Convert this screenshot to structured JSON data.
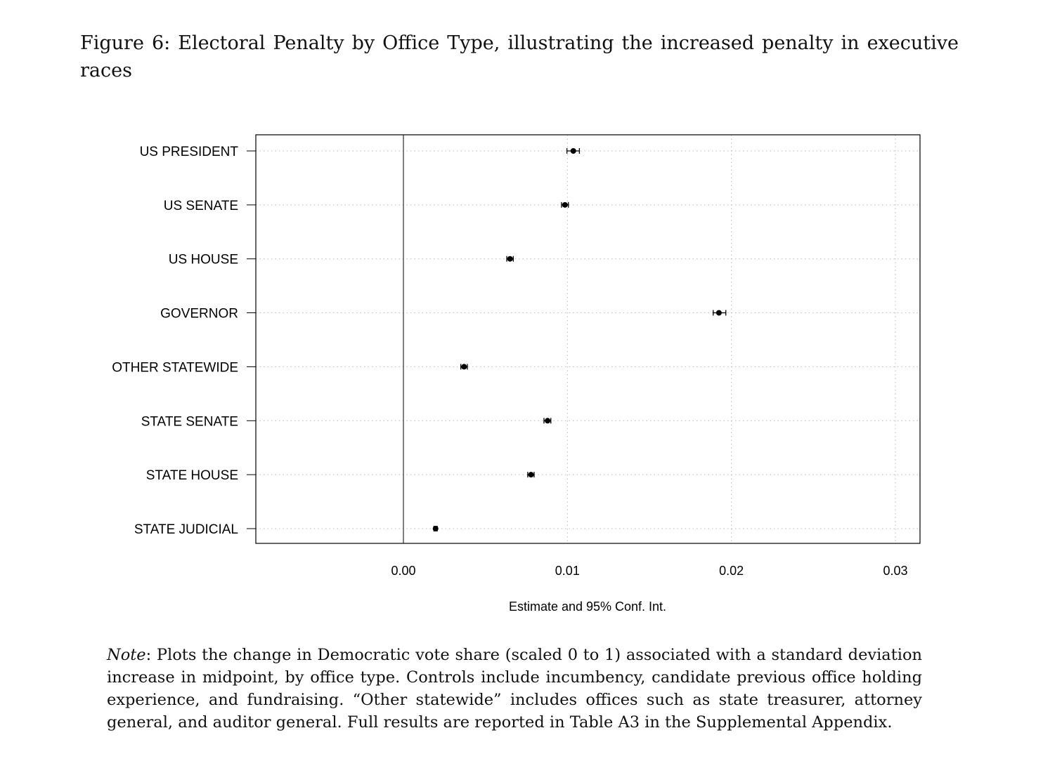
{
  "caption": "Figure 6: Electoral Penalty by Office Type, illustrating the increased penalty in executive races",
  "note_label": "Note",
  "note_text": ": Plots the change in Democratic vote share (scaled 0 to 1) associated with a standard deviation increase in midpoint, by office type. Controls include incumbency, candidate previous office holding experience, and fundraising.  “Other statewide” includes offices such as state treasurer, attorney general, and auditor general. Full results are reported in Table A3 in the Supplemental Appendix.",
  "chart_data": {
    "type": "scatter",
    "subtype": "coefficient-plot",
    "xlabel": "Estimate and 95% Conf. Int.",
    "ylabel": "",
    "xlim": [
      -0.009,
      0.0315
    ],
    "xticks": [
      0.0,
      0.01,
      0.02,
      0.03
    ],
    "xtick_labels": [
      "0.00",
      "0.01",
      "0.02",
      "0.03"
    ],
    "reference_line": 0,
    "grid": "dotted",
    "categories": [
      "US PRESIDENT",
      "US SENATE",
      "US HOUSE",
      "GOVERNOR",
      "OTHER STATEWIDE",
      "STATE SENATE",
      "STATE HOUSE",
      "STATE JUDICIAL"
    ],
    "estimates": [
      0.01036,
      0.00985,
      0.0065,
      0.01924,
      0.0037,
      0.00879,
      0.00778,
      0.00196
    ],
    "ci_low": [
      0.00997,
      0.00964,
      0.0063,
      0.01889,
      0.0035,
      0.00857,
      0.00758,
      0.00186
    ],
    "ci_high": [
      0.01073,
      0.01006,
      0.0067,
      0.01966,
      0.0039,
      0.00899,
      0.00797,
      0.00206
    ]
  }
}
